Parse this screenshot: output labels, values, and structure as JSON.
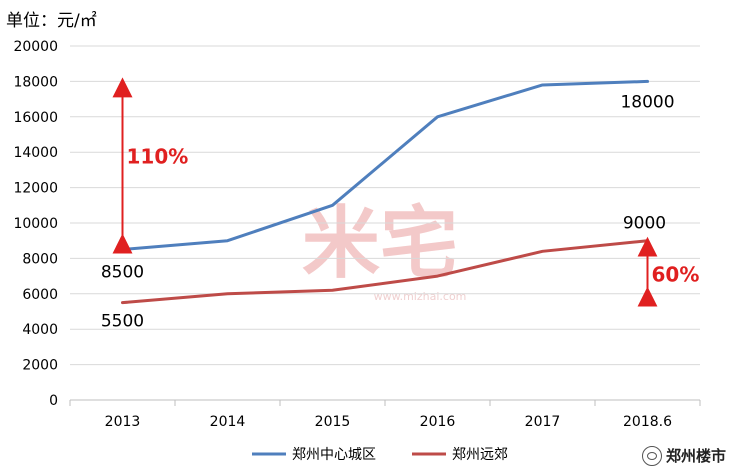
{
  "unit_label": "单位：元/㎡",
  "watermark": "米宅",
  "watermark_url": "www.mizhai.com",
  "brand_name": "郑州楼市",
  "colors": {
    "series1": "#4f7fbd",
    "series2": "#be4b48",
    "arrow": "#e02020",
    "grid": "#d9d9d9"
  },
  "chart_data": {
    "type": "line",
    "title": "",
    "xlabel": "",
    "ylabel": "",
    "ylim": [
      0,
      20000
    ],
    "yticks": [
      0,
      2000,
      4000,
      6000,
      8000,
      10000,
      12000,
      14000,
      16000,
      18000,
      20000
    ],
    "categories": [
      "2013",
      "2014",
      "2015",
      "2016",
      "2017",
      "2018.6"
    ],
    "grid": true,
    "legend_position": "bottom",
    "series": [
      {
        "name": "郑州中心城区",
        "values": [
          8500,
          9000,
          11000,
          16000,
          17800,
          18000
        ]
      },
      {
        "name": "郑州远郊",
        "values": [
          5500,
          6000,
          6200,
          7000,
          8400,
          9000
        ]
      }
    ],
    "data_labels": [
      {
        "text": "8500",
        "series": 0,
        "index": 0
      },
      {
        "text": "18000",
        "series": 0,
        "index": 5
      },
      {
        "text": "5500",
        "series": 1,
        "index": 0
      },
      {
        "text": "9000",
        "series": 1,
        "index": 5
      }
    ],
    "annotations": [
      {
        "text": "110%",
        "category_index": 0,
        "from": 8500,
        "to": 18000
      },
      {
        "text": "60%",
        "category_index": 5,
        "from": 5500,
        "to": 9000
      }
    ]
  }
}
